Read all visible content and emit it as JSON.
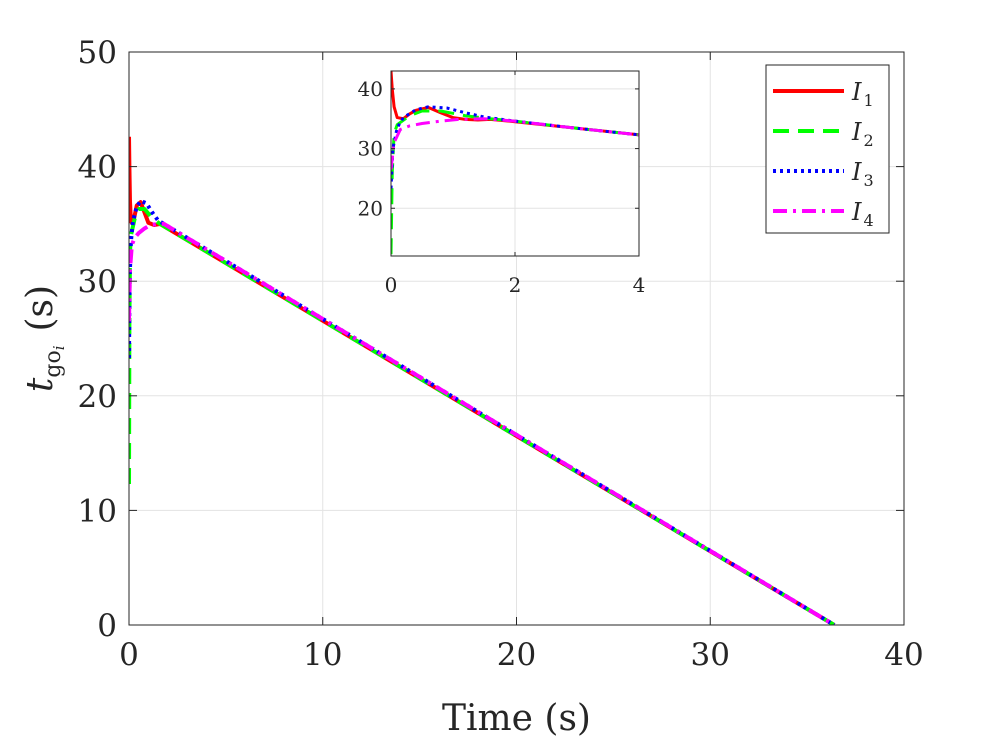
{
  "chart_data": [
    {
      "type": "line",
      "title": "",
      "xlabel": "Time (s)",
      "ylabel": {
        "main": "t",
        "sub": "go",
        "subsub": "i",
        "unit": "(s)"
      },
      "xlim": [
        0,
        40
      ],
      "ylim": [
        0,
        50
      ],
      "xticks": [
        "0",
        "10",
        "20",
        "30",
        "40"
      ],
      "yticks": [
        "0",
        "10",
        "20",
        "30",
        "40",
        "50"
      ],
      "grid": true,
      "legend": {
        "placement": "top-right"
      },
      "series": [
        {
          "name": "I",
          "sub": "1",
          "color": "#ff0000",
          "dash": "solid",
          "points": [
            [
              0,
              42.6
            ],
            [
              0.02,
              40
            ],
            [
              0.05,
              37
            ],
            [
              0.1,
              35.2
            ],
            [
              0.2,
              35.0
            ],
            [
              0.4,
              36.6
            ],
            [
              0.6,
              36.9
            ],
            [
              0.8,
              36.0
            ],
            [
              1.0,
              35.1
            ],
            [
              1.3,
              34.9
            ],
            [
              1.6,
              35.0
            ],
            [
              36.4,
              0
            ]
          ]
        },
        {
          "name": "I",
          "sub": "2",
          "color": "#00ff00",
          "dash": "dashed",
          "points": [
            [
              0,
              12.3
            ],
            [
              0.02,
              26
            ],
            [
              0.05,
              32.5
            ],
            [
              0.1,
              34.0
            ],
            [
              0.3,
              35.5
            ],
            [
              0.5,
              36.3
            ],
            [
              0.8,
              36.3
            ],
            [
              1.2,
              35.5
            ],
            [
              1.6,
              35.0
            ],
            [
              36.4,
              0
            ]
          ]
        },
        {
          "name": "I",
          "sub": "3",
          "color": "#0000ff",
          "dash": "dotted",
          "points": [
            [
              0,
              23.3
            ],
            [
              0.03,
              30
            ],
            [
              0.1,
              33.5
            ],
            [
              0.2,
              35.2
            ],
            [
              0.4,
              36.5
            ],
            [
              0.6,
              37.0
            ],
            [
              0.9,
              36.8
            ],
            [
              1.2,
              36.0
            ],
            [
              1.5,
              35.3
            ],
            [
              1.8,
              35.0
            ],
            [
              36.4,
              0
            ]
          ]
        },
        {
          "name": "I",
          "sub": "4",
          "color": "#ff00ff",
          "dash": "dashdot",
          "points": [
            [
              0,
              26.5
            ],
            [
              0.05,
              31
            ],
            [
              0.15,
              33.2
            ],
            [
              0.3,
              33.8
            ],
            [
              0.5,
              34.2
            ],
            [
              0.8,
              34.6
            ],
            [
              1.1,
              34.9
            ],
            [
              1.5,
              35.0
            ],
            [
              1.8,
              35.0
            ],
            [
              36.4,
              0
            ]
          ]
        }
      ]
    },
    {
      "type": "line",
      "title": "",
      "xlabel": "",
      "ylabel": "",
      "xlim": [
        0,
        4
      ],
      "ylim": [
        12,
        43
      ],
      "xticks": [
        "0",
        "2",
        "4"
      ],
      "yticks": [
        "20",
        "30",
        "40"
      ],
      "grid": true,
      "series": [
        {
          "name": "I",
          "sub": "1",
          "color": "#ff0000",
          "dash": "solid",
          "points": [
            [
              0,
              43
            ],
            [
              0.02,
              40
            ],
            [
              0.05,
              37
            ],
            [
              0.1,
              35.2
            ],
            [
              0.2,
              35.0
            ],
            [
              0.3,
              35.8
            ],
            [
              0.4,
              36.4
            ],
            [
              0.6,
              36.9
            ],
            [
              0.8,
              36.0
            ],
            [
              1.0,
              35.2
            ],
            [
              1.2,
              34.9
            ],
            [
              1.4,
              34.8
            ],
            [
              1.6,
              34.9
            ],
            [
              2,
              34.5
            ],
            [
              3,
              33.4
            ],
            [
              4,
              32.3
            ]
          ]
        },
        {
          "name": "I",
          "sub": "2",
          "color": "#00ff00",
          "dash": "dashed",
          "points": [
            [
              0,
              12.3
            ],
            [
              0.02,
              26
            ],
            [
              0.05,
              32.5
            ],
            [
              0.1,
              34.0
            ],
            [
              0.3,
              35.5
            ],
            [
              0.5,
              36.3
            ],
            [
              0.8,
              36.3
            ],
            [
              1.2,
              35.5
            ],
            [
              1.6,
              35.0
            ],
            [
              2,
              34.6
            ],
            [
              3,
              33.4
            ],
            [
              4,
              32.3
            ]
          ]
        },
        {
          "name": "I",
          "sub": "3",
          "color": "#0000ff",
          "dash": "dotted",
          "points": [
            [
              0,
              23.3
            ],
            [
              0.03,
              30
            ],
            [
              0.1,
              33.5
            ],
            [
              0.2,
              35.2
            ],
            [
              0.4,
              36.5
            ],
            [
              0.6,
              37.0
            ],
            [
              0.9,
              36.8
            ],
            [
              1.2,
              36.0
            ],
            [
              1.5,
              35.3
            ],
            [
              2,
              34.6
            ],
            [
              3,
              33.4
            ],
            [
              4,
              32.3
            ]
          ]
        },
        {
          "name": "I",
          "sub": "4",
          "color": "#ff00ff",
          "dash": "dashdot",
          "points": [
            [
              0,
              26.5
            ],
            [
              0.05,
              31
            ],
            [
              0.15,
              33.2
            ],
            [
              0.3,
              33.8
            ],
            [
              0.5,
              34.2
            ],
            [
              0.8,
              34.6
            ],
            [
              1.1,
              34.9
            ],
            [
              1.5,
              35.0
            ],
            [
              2,
              34.6
            ],
            [
              3,
              33.4
            ],
            [
              4,
              32.3
            ]
          ]
        }
      ]
    }
  ]
}
